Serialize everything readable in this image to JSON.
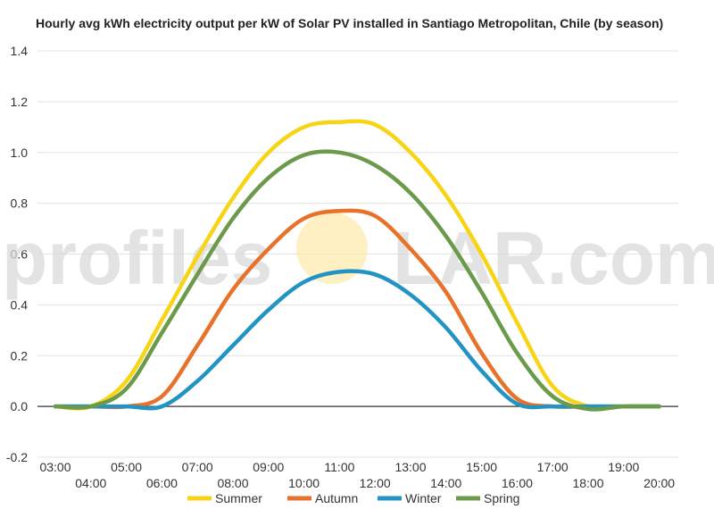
{
  "chart_data": {
    "type": "line",
    "title": "Hourly avg kWh electricity output per kW of Solar PV installed in Santiago Metropolitan, Chile (by season)",
    "xlabel": "",
    "ylabel": "",
    "x": [
      "03:00",
      "04:00",
      "05:00",
      "06:00",
      "07:00",
      "08:00",
      "09:00",
      "10:00",
      "11:00",
      "12:00",
      "13:00",
      "14:00",
      "15:00",
      "16:00",
      "17:00",
      "18:00",
      "19:00",
      "20:00"
    ],
    "ylim": [
      -0.2,
      1.4
    ],
    "yticks": [
      "-0.2",
      "0.0",
      "0.2",
      "0.4",
      "0.6",
      "0.8",
      "1.0",
      "1.2",
      "1.4"
    ],
    "grid": true,
    "legend_position": "bottom",
    "series": [
      {
        "name": "Summer",
        "color": "#f7d416",
        "values": [
          0.0,
          0.0,
          0.1,
          0.34,
          0.59,
          0.82,
          1.0,
          1.1,
          1.12,
          1.11,
          1.0,
          0.83,
          0.6,
          0.33,
          0.08,
          0.0,
          0.0,
          0.0
        ]
      },
      {
        "name": "Autumn",
        "color": "#e8722a",
        "values": [
          0.0,
          0.0,
          0.0,
          0.04,
          0.24,
          0.46,
          0.62,
          0.74,
          0.77,
          0.75,
          0.62,
          0.45,
          0.21,
          0.03,
          0.0,
          0.0,
          0.0,
          0.0
        ]
      },
      {
        "name": "Winter",
        "color": "#2393c4",
        "values": [
          0.0,
          0.0,
          0.0,
          0.0,
          0.1,
          0.24,
          0.38,
          0.49,
          0.53,
          0.52,
          0.44,
          0.31,
          0.14,
          0.01,
          0.0,
          0.0,
          0.0,
          0.0
        ]
      },
      {
        "name": "Spring",
        "color": "#6a9a4a",
        "values": [
          0.0,
          0.0,
          0.07,
          0.29,
          0.52,
          0.74,
          0.9,
          0.99,
          1.0,
          0.95,
          0.84,
          0.67,
          0.45,
          0.21,
          0.04,
          -0.01,
          0.0,
          0.0
        ]
      }
    ]
  },
  "watermark": {
    "text_left": "profiles",
    "text_right": "LAR.com",
    "sun_color": "#fde9a8"
  }
}
